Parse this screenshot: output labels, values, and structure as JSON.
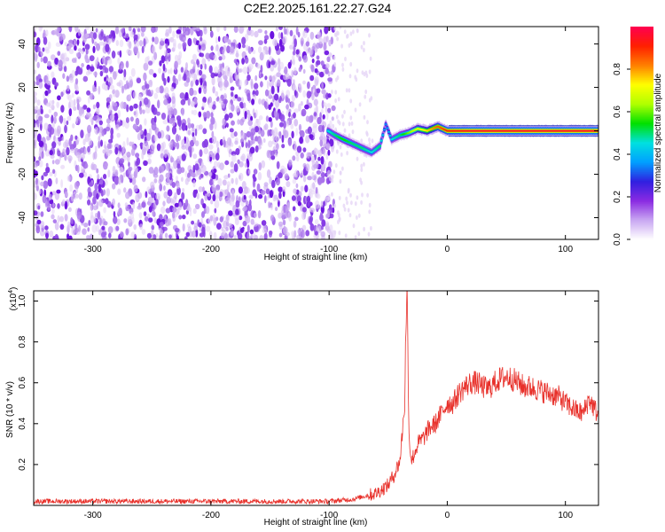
{
  "figure_title": "C2E2.2025.161.22.27.G24",
  "colors": {
    "snr_line": "#e8302a",
    "noise_low": "#e6d6f6",
    "noise_high": "#6a10e0",
    "spectral_track_core": "#e02020"
  },
  "chart_data": [
    {
      "type": "heatmap",
      "xlabel": "Height of straight line (km)",
      "ylabel": "Frequency (Hz)",
      "xlim": [
        -350,
        128
      ],
      "ylim": [
        -50,
        48
      ],
      "xticks": [
        -300,
        -200,
        -100,
        0,
        100
      ],
      "yticks": [
        -40,
        -20,
        0,
        20,
        40
      ],
      "colorbar": {
        "label": "Normalized spectral amplitude",
        "range": [
          0,
          1
        ],
        "ticks": [
          "0.0",
          "0.2",
          "0.4",
          "0.6",
          "0.8"
        ],
        "tick_values": [
          0,
          0.2,
          0.4,
          0.6,
          0.8
        ],
        "colormap": [
          "#ffffff",
          "#c9a8f2",
          "#8a2be2",
          "#3020e0",
          "#00a0ff",
          "#00e0e0",
          "#00e000",
          "#b0ff00",
          "#ffff00",
          "#ff8000",
          "#ff2000",
          "#ff0050"
        ]
      },
      "noise_region_x": [
        -350,
        -96
      ],
      "sparse_noise_x": [
        -98,
        -63
      ],
      "signal_track": [
        {
          "x": -101,
          "y": 0,
          "a": 0.45
        },
        {
          "x": -95,
          "y": -2,
          "a": 0.5
        },
        {
          "x": -88,
          "y": -4,
          "a": 0.55
        },
        {
          "x": -80,
          "y": -6,
          "a": 0.5
        },
        {
          "x": -72,
          "y": -8,
          "a": 0.5
        },
        {
          "x": -64,
          "y": -10,
          "a": 0.45
        },
        {
          "x": -57,
          "y": -7,
          "a": 0.5
        },
        {
          "x": -52,
          "y": 3,
          "a": 0.35
        },
        {
          "x": -47,
          "y": -4,
          "a": 0.45
        },
        {
          "x": -40,
          "y": -2,
          "a": 0.5
        },
        {
          "x": -33,
          "y": -1,
          "a": 0.6
        },
        {
          "x": -25,
          "y": 1,
          "a": 0.7
        },
        {
          "x": -17,
          "y": 0,
          "a": 0.75
        },
        {
          "x": -8,
          "y": 2,
          "a": 0.85
        },
        {
          "x": 0,
          "y": 0,
          "a": 0.9
        },
        {
          "x": 20,
          "y": 0,
          "a": 0.95
        },
        {
          "x": 50,
          "y": 0,
          "a": 0.95
        },
        {
          "x": 80,
          "y": 0,
          "a": 0.95
        },
        {
          "x": 110,
          "y": 0,
          "a": 0.95
        },
        {
          "x": 128,
          "y": 0,
          "a": 0.95
        }
      ]
    },
    {
      "type": "line",
      "xlabel": "Height of straight line (km)",
      "ylabel": "SNR (10 * v/v)",
      "y_multiplier": "(x10",
      "y_multiplier_exp": "4",
      "y_multiplier_close": ")",
      "xlim": [
        -350,
        128
      ],
      "ylim": [
        0,
        1.05
      ],
      "xticks": [
        -300,
        -200,
        -100,
        0,
        100
      ],
      "yticks": [
        0.2,
        0.4,
        0.6,
        0.8,
        1.0
      ],
      "series": [
        {
          "x": [
            -350,
            -300,
            -250,
            -200,
            -150,
            -120,
            -100,
            -80,
            -60,
            -50,
            -45,
            -40,
            -36,
            -35,
            -34,
            -33,
            -32,
            -30,
            -25,
            -20,
            -15,
            -10,
            -5,
            0,
            5,
            10,
            15,
            20,
            25,
            30,
            35,
            40,
            45,
            50,
            55,
            60,
            65,
            70,
            75,
            80,
            85,
            90,
            95,
            100,
            105,
            110,
            115,
            120,
            125,
            128
          ],
          "y": [
            0.02,
            0.02,
            0.02,
            0.02,
            0.02,
            0.02,
            0.02,
            0.03,
            0.06,
            0.1,
            0.15,
            0.22,
            0.5,
            0.88,
            1.05,
            0.6,
            0.3,
            0.22,
            0.3,
            0.33,
            0.38,
            0.4,
            0.45,
            0.5,
            0.5,
            0.55,
            0.58,
            0.6,
            0.6,
            0.58,
            0.57,
            0.6,
            0.62,
            0.63,
            0.62,
            0.6,
            0.58,
            0.58,
            0.57,
            0.56,
            0.55,
            0.54,
            0.53,
            0.5,
            0.48,
            0.46,
            0.45,
            0.52,
            0.47,
            0.44
          ],
          "noise_amplitude": 0.05
        }
      ]
    }
  ]
}
